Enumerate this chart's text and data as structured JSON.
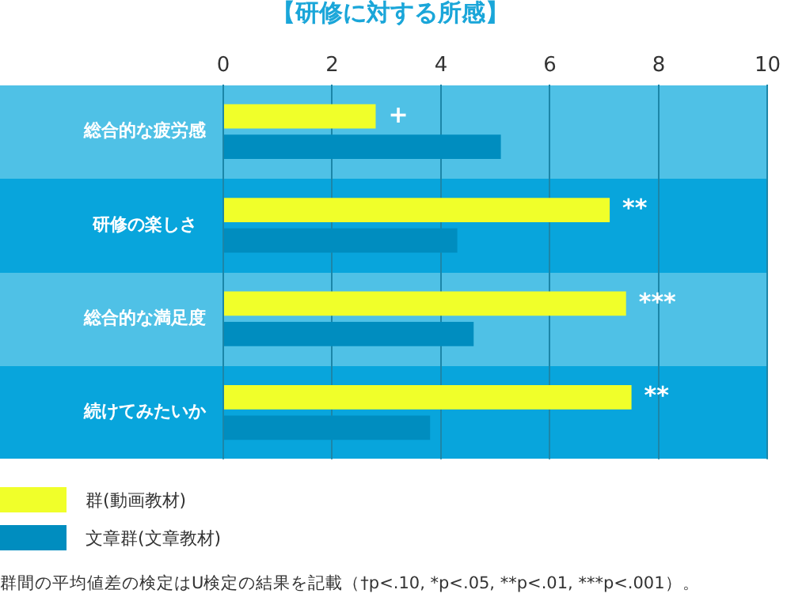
{
  "chart_data": {
    "type": "bar",
    "orientation": "horizontal",
    "title": "【研修に対する所感】",
    "categories": [
      "総合的な疲労感",
      "研修の楽しさ",
      "総合的な満足度",
      "続けてみたいか"
    ],
    "series": [
      {
        "name": "群(動画教材)",
        "color": "#f0ff2a",
        "values": [
          2.8,
          7.1,
          7.4,
          7.5
        ]
      },
      {
        "name": "文章群(文章教材)",
        "color": "#008dbf",
        "values": [
          5.1,
          4.3,
          4.6,
          3.8
        ]
      }
    ],
    "xlim": [
      0,
      10
    ],
    "xticks": [
      0,
      2,
      4,
      6,
      8,
      10
    ],
    "grid": "x",
    "legend": "bottom left",
    "annotations": [
      {
        "text": "+",
        "x": 2.8,
        "y": "総合的な疲労感"
      },
      {
        "text": "**",
        "x": 7.1,
        "y": "研修の楽しさ"
      },
      {
        "text": "***",
        "x": 7.4,
        "y": "総合的な満足度"
      },
      {
        "text": "**",
        "x": 7.5,
        "y": "続けてみたいか"
      },
      "群間の平均値差の検定はU検定の結果を記載（†p<.10, *p<.05, **p<.01, ***p<.001）。"
    ]
  }
}
